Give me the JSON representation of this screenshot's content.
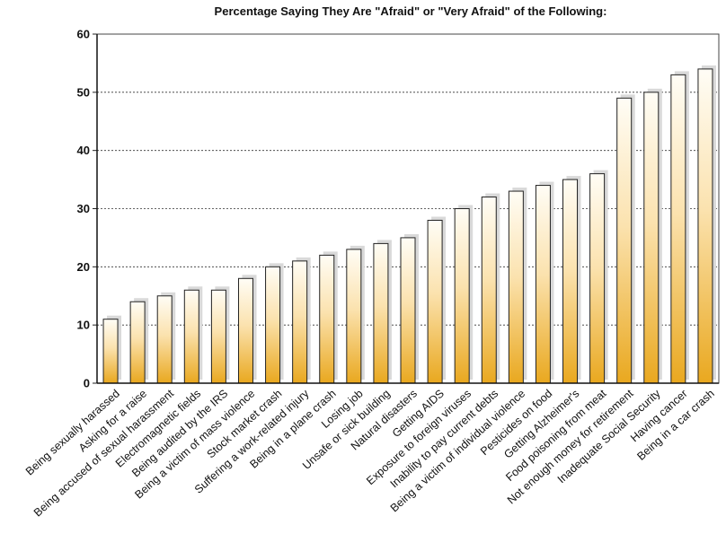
{
  "chart_data": {
    "type": "bar",
    "title": "Percentage Saying They Are \"Afraid\" or \"Very Afraid\" of the Following:",
    "xlabel": "",
    "ylabel": "",
    "ylim": [
      0,
      60
    ],
    "yticks": [
      0,
      10,
      20,
      30,
      40,
      50,
      60
    ],
    "grid": true,
    "colors": {
      "bar_top": "#fffdf6",
      "bar_bottom": "#e9a81f",
      "bar_stroke": "#222222",
      "shadow": "#d9d9d9",
      "grid": "#333333"
    },
    "categories": [
      "Being sexually harassed",
      "Asking for a raise",
      "Being accused of sexual harassment",
      "Electromagnetic fields",
      "Being audited by the IRS",
      "Being a victim of mass violence",
      "Stock market crash",
      "Suffering a work-related injury",
      "Being in a plane crash",
      "Losing job",
      "Unsafe or sick building",
      "Natural disasters",
      "Getting AIDS",
      "Exposure to foreign viruses",
      "Inability to pay current debts",
      "Being a victim of individual violence",
      "Pesticides on food",
      "Getting Alzheimer's",
      "Food poisoning from meat",
      "Not enough money for retirement",
      "Inadequate Social Security",
      "Having cancer",
      "Being in a car crash"
    ],
    "values": [
      11,
      14,
      15,
      16,
      16,
      18,
      20,
      21,
      22,
      23,
      24,
      25,
      28,
      30,
      32,
      33,
      34,
      35,
      36,
      49,
      50,
      53,
      54
    ]
  }
}
